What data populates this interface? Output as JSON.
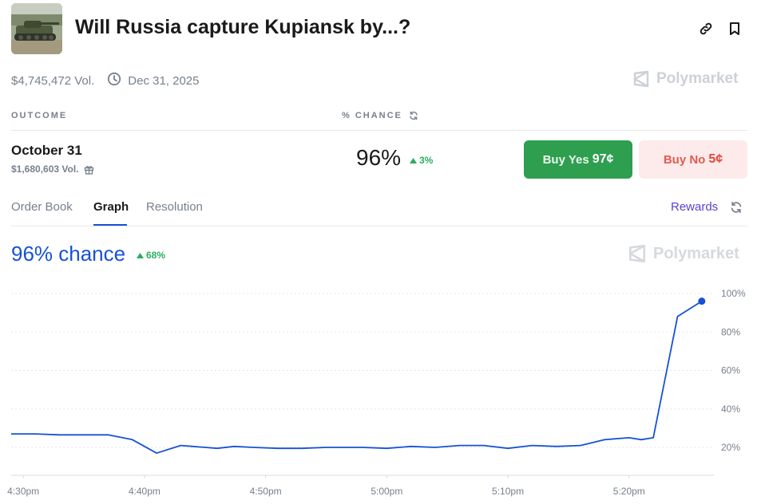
{
  "header": {
    "title": "Will Russia capture Kupiansk by...?",
    "volume": "$4,745,472 Vol.",
    "end_date": "Dec 31, 2025",
    "brand": "Polymarket"
  },
  "table": {
    "col_outcome": "OUTCOME",
    "col_chance": "% CHANCE"
  },
  "outcome": {
    "name": "October 31",
    "volume": "$1,680,603 Vol.",
    "chance": "96%",
    "delta": "3%"
  },
  "buttons": {
    "yes_label": "Buy Yes",
    "yes_price": "97¢",
    "no_label": "Buy No",
    "no_price": "5¢"
  },
  "tabs": [
    {
      "label": "Order Book"
    },
    {
      "label": "Graph"
    },
    {
      "label": "Resolution"
    }
  ],
  "rewards_label": "Rewards",
  "graph": {
    "chance_label": "96% chance",
    "delta": "68%",
    "brand": "Polymarket"
  },
  "colors": {
    "line": "#1652d4",
    "accent_green": "#2e9e4f",
    "no_red": "#e0483f"
  },
  "chart_data": {
    "type": "line",
    "x_ticks": [
      "4:30pm",
      "4:40pm",
      "4:50pm",
      "5:00pm",
      "5:10pm",
      "5:20pm"
    ],
    "y_ticks": [
      "20%",
      "40%",
      "60%",
      "80%",
      "100%"
    ],
    "ylim": [
      0,
      100
    ],
    "xlim_minutes": [
      -0.5,
      28.5
    ],
    "grid": true,
    "series": [
      {
        "x": [
          -0.5,
          0.5,
          1.5,
          2.5,
          3.5,
          4.5,
          5.5,
          6.5,
          7.0,
          8.0,
          8.7,
          9.5,
          10.5,
          11.5,
          12.5,
          13.0,
          14.0,
          15.0,
          16.0,
          17.0,
          18.0,
          19.0,
          20.0,
          21.0,
          22.0,
          23.0,
          24.0,
          25.0,
          25.5,
          26.0,
          27.0,
          28.0
        ],
        "y": [
          27,
          27,
          26.5,
          26.5,
          26.5,
          24,
          17,
          21,
          20.5,
          19.5,
          20.5,
          20,
          19.5,
          19.5,
          20,
          20,
          20,
          19.5,
          20.5,
          20,
          21,
          21,
          19.5,
          21,
          20.5,
          21,
          24,
          25,
          24,
          25,
          88,
          96
        ]
      }
    ]
  }
}
